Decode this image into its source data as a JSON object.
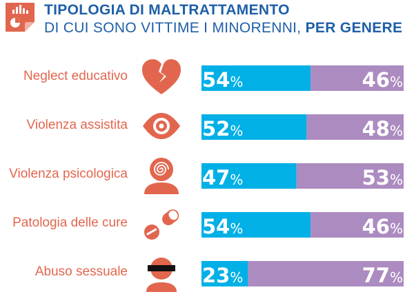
{
  "header": {
    "title_line1": "TIPOLOGIA DI MALTRATTAMENTO",
    "title_line2_main": "DI CUI SONO VITTIME I MINORENNI, ",
    "title_line2_bold": "PER GENERE",
    "icon": "chart-report-icon"
  },
  "colors": {
    "series_a": "#00b0e6",
    "series_b": "#ac8bc0",
    "label": "#e2664e",
    "icon": "#e2664e",
    "title": "#1f5fa8"
  },
  "chart_data": {
    "type": "bar",
    "orientation": "horizontal",
    "stacked": true,
    "percent": true,
    "categories": [
      "Neglect educativo",
      "Violenza assistita",
      "Violenza psicologica",
      "Patologia delle cure",
      "Abuso sessuale"
    ],
    "category_icons": [
      "broken-heart-icon",
      "eye-icon",
      "head-spiral-icon",
      "pills-icon",
      "masked-face-icon"
    ],
    "series": [
      {
        "values": [
          54,
          52,
          47,
          54,
          23
        ]
      },
      {
        "values": [
          46,
          48,
          53,
          46,
          77
        ]
      }
    ],
    "value_suffix": "%",
    "xlim": [
      0,
      100
    ],
    "grid": false,
    "legend": "none"
  }
}
